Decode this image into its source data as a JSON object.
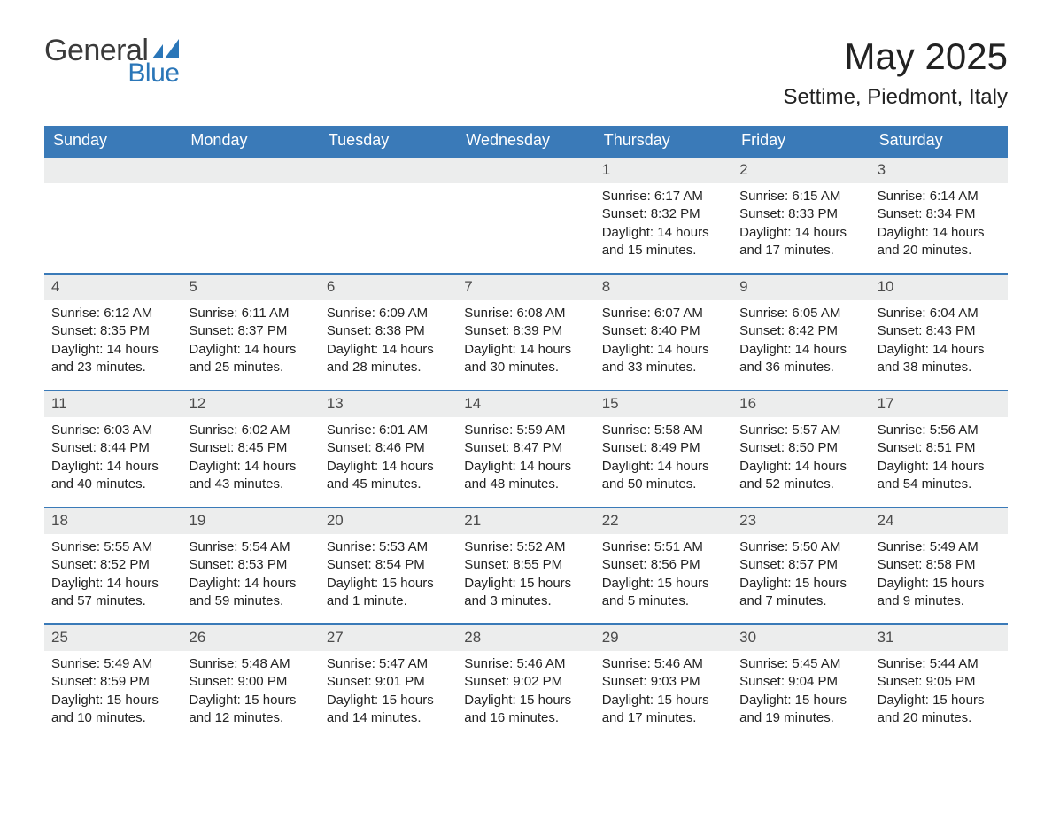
{
  "logo": {
    "word1": "General",
    "word2": "Blue",
    "shape_color": "#2a76b8"
  },
  "title": {
    "month_year": "May 2025",
    "location": "Settime, Piedmont, Italy"
  },
  "colors": {
    "header_bg": "#3a7ab8",
    "header_text": "#ffffff",
    "daynum_bg": "#eceded",
    "daynum_text": "#4b4b4b",
    "cell_border": "#3a7ab8",
    "body_text": "#222222",
    "page_bg": "#ffffff"
  },
  "typography": {
    "title_fontsize_pt": 32,
    "subtitle_fontsize_pt": 18,
    "header_fontsize_pt": 14,
    "daynum_fontsize_pt": 13,
    "detail_fontsize_pt": 11,
    "font_family": "Arial"
  },
  "calendar": {
    "type": "table",
    "cols": 7,
    "rows": 5,
    "day_headers": [
      "Sunday",
      "Monday",
      "Tuesday",
      "Wednesday",
      "Thursday",
      "Friday",
      "Saturday"
    ],
    "leading_blanks": 4,
    "days": [
      {
        "n": "1",
        "sunrise": "Sunrise: 6:17 AM",
        "sunset": "Sunset: 8:32 PM",
        "daylight": "Daylight: 14 hours and 15 minutes."
      },
      {
        "n": "2",
        "sunrise": "Sunrise: 6:15 AM",
        "sunset": "Sunset: 8:33 PM",
        "daylight": "Daylight: 14 hours and 17 minutes."
      },
      {
        "n": "3",
        "sunrise": "Sunrise: 6:14 AM",
        "sunset": "Sunset: 8:34 PM",
        "daylight": "Daylight: 14 hours and 20 minutes."
      },
      {
        "n": "4",
        "sunrise": "Sunrise: 6:12 AM",
        "sunset": "Sunset: 8:35 PM",
        "daylight": "Daylight: 14 hours and 23 minutes."
      },
      {
        "n": "5",
        "sunrise": "Sunrise: 6:11 AM",
        "sunset": "Sunset: 8:37 PM",
        "daylight": "Daylight: 14 hours and 25 minutes."
      },
      {
        "n": "6",
        "sunrise": "Sunrise: 6:09 AM",
        "sunset": "Sunset: 8:38 PM",
        "daylight": "Daylight: 14 hours and 28 minutes."
      },
      {
        "n": "7",
        "sunrise": "Sunrise: 6:08 AM",
        "sunset": "Sunset: 8:39 PM",
        "daylight": "Daylight: 14 hours and 30 minutes."
      },
      {
        "n": "8",
        "sunrise": "Sunrise: 6:07 AM",
        "sunset": "Sunset: 8:40 PM",
        "daylight": "Daylight: 14 hours and 33 minutes."
      },
      {
        "n": "9",
        "sunrise": "Sunrise: 6:05 AM",
        "sunset": "Sunset: 8:42 PM",
        "daylight": "Daylight: 14 hours and 36 minutes."
      },
      {
        "n": "10",
        "sunrise": "Sunrise: 6:04 AM",
        "sunset": "Sunset: 8:43 PM",
        "daylight": "Daylight: 14 hours and 38 minutes."
      },
      {
        "n": "11",
        "sunrise": "Sunrise: 6:03 AM",
        "sunset": "Sunset: 8:44 PM",
        "daylight": "Daylight: 14 hours and 40 minutes."
      },
      {
        "n": "12",
        "sunrise": "Sunrise: 6:02 AM",
        "sunset": "Sunset: 8:45 PM",
        "daylight": "Daylight: 14 hours and 43 minutes."
      },
      {
        "n": "13",
        "sunrise": "Sunrise: 6:01 AM",
        "sunset": "Sunset: 8:46 PM",
        "daylight": "Daylight: 14 hours and 45 minutes."
      },
      {
        "n": "14",
        "sunrise": "Sunrise: 5:59 AM",
        "sunset": "Sunset: 8:47 PM",
        "daylight": "Daylight: 14 hours and 48 minutes."
      },
      {
        "n": "15",
        "sunrise": "Sunrise: 5:58 AM",
        "sunset": "Sunset: 8:49 PM",
        "daylight": "Daylight: 14 hours and 50 minutes."
      },
      {
        "n": "16",
        "sunrise": "Sunrise: 5:57 AM",
        "sunset": "Sunset: 8:50 PM",
        "daylight": "Daylight: 14 hours and 52 minutes."
      },
      {
        "n": "17",
        "sunrise": "Sunrise: 5:56 AM",
        "sunset": "Sunset: 8:51 PM",
        "daylight": "Daylight: 14 hours and 54 minutes."
      },
      {
        "n": "18",
        "sunrise": "Sunrise: 5:55 AM",
        "sunset": "Sunset: 8:52 PM",
        "daylight": "Daylight: 14 hours and 57 minutes."
      },
      {
        "n": "19",
        "sunrise": "Sunrise: 5:54 AM",
        "sunset": "Sunset: 8:53 PM",
        "daylight": "Daylight: 14 hours and 59 minutes."
      },
      {
        "n": "20",
        "sunrise": "Sunrise: 5:53 AM",
        "sunset": "Sunset: 8:54 PM",
        "daylight": "Daylight: 15 hours and 1 minute."
      },
      {
        "n": "21",
        "sunrise": "Sunrise: 5:52 AM",
        "sunset": "Sunset: 8:55 PM",
        "daylight": "Daylight: 15 hours and 3 minutes."
      },
      {
        "n": "22",
        "sunrise": "Sunrise: 5:51 AM",
        "sunset": "Sunset: 8:56 PM",
        "daylight": "Daylight: 15 hours and 5 minutes."
      },
      {
        "n": "23",
        "sunrise": "Sunrise: 5:50 AM",
        "sunset": "Sunset: 8:57 PM",
        "daylight": "Daylight: 15 hours and 7 minutes."
      },
      {
        "n": "24",
        "sunrise": "Sunrise: 5:49 AM",
        "sunset": "Sunset: 8:58 PM",
        "daylight": "Daylight: 15 hours and 9 minutes."
      },
      {
        "n": "25",
        "sunrise": "Sunrise: 5:49 AM",
        "sunset": "Sunset: 8:59 PM",
        "daylight": "Daylight: 15 hours and 10 minutes."
      },
      {
        "n": "26",
        "sunrise": "Sunrise: 5:48 AM",
        "sunset": "Sunset: 9:00 PM",
        "daylight": "Daylight: 15 hours and 12 minutes."
      },
      {
        "n": "27",
        "sunrise": "Sunrise: 5:47 AM",
        "sunset": "Sunset: 9:01 PM",
        "daylight": "Daylight: 15 hours and 14 minutes."
      },
      {
        "n": "28",
        "sunrise": "Sunrise: 5:46 AM",
        "sunset": "Sunset: 9:02 PM",
        "daylight": "Daylight: 15 hours and 16 minutes."
      },
      {
        "n": "29",
        "sunrise": "Sunrise: 5:46 AM",
        "sunset": "Sunset: 9:03 PM",
        "daylight": "Daylight: 15 hours and 17 minutes."
      },
      {
        "n": "30",
        "sunrise": "Sunrise: 5:45 AM",
        "sunset": "Sunset: 9:04 PM",
        "daylight": "Daylight: 15 hours and 19 minutes."
      },
      {
        "n": "31",
        "sunrise": "Sunrise: 5:44 AM",
        "sunset": "Sunset: 9:05 PM",
        "daylight": "Daylight: 15 hours and 20 minutes."
      }
    ]
  }
}
